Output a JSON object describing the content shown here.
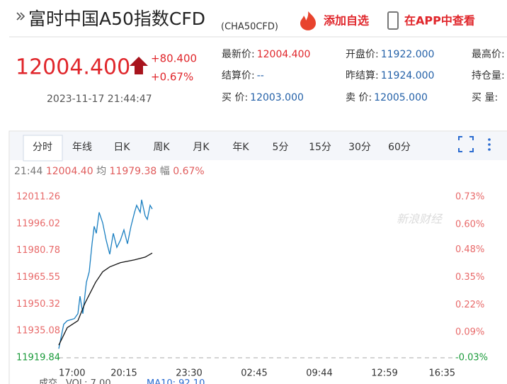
{
  "header": {
    "title": "富时中国A50指数CFD",
    "code": "(CHA50CFD)",
    "add_watchlist": "添加自选",
    "view_in_app": "在APP中查看"
  },
  "quote": {
    "price": "12004.400",
    "change": "+80.400",
    "change_pct": "+0.67%",
    "time": "2023-11-17 21:44:47",
    "fields": [
      {
        "label": "最新价:",
        "value": "12004.400"
      },
      {
        "label": "开盘价:",
        "value": "11922.000"
      },
      {
        "label": "最高价:"
      },
      {
        "label": "结算价:",
        "value": "--"
      },
      {
        "label": "昨结算:",
        "value": "11924.000"
      },
      {
        "label": "持仓量:"
      },
      {
        "label": "买 价:",
        "value": "12003.000"
      },
      {
        "label": "卖 价:",
        "value": "12005.000"
      },
      {
        "label": "买 量:"
      }
    ]
  },
  "tabs": [
    "分时",
    "年线",
    "日K",
    "周K",
    "月K",
    "年K",
    "5分",
    "15分",
    "30分",
    "60分"
  ],
  "chart_data": {
    "type": "line",
    "info": [
      "21:44",
      "12004.40",
      "均",
      "11979.38",
      "幅",
      "0.67%"
    ],
    "watermark": "新浪财经",
    "xlim": [
      0,
      6
    ],
    "xticks": [
      {
        "value": 0,
        "label": "17:00"
      },
      {
        "value": 1,
        "label": "20:15"
      },
      {
        "value": 2,
        "label": "23:30"
      },
      {
        "value": 3,
        "label": "02:45"
      },
      {
        "value": 4,
        "label": "09:44"
      },
      {
        "value": 5,
        "label": "12:59"
      },
      {
        "value": 6,
        "label": "16:35"
      }
    ],
    "ylim": [
      11919.84,
      12011.26
    ],
    "yticks": [
      11919.84,
      11935.08,
      11950.32,
      11965.55,
      11980.78,
      11996.02,
      12011.26
    ],
    "y2lim": [
      -0.03,
      0.73
    ],
    "y2ticks": [
      {
        "value": -0.03,
        "label": "-0.03%"
      },
      {
        "value": 0.09,
        "label": "0.09%"
      },
      {
        "value": 0.22,
        "label": "0.22%"
      },
      {
        "value": 0.35,
        "label": "0.35%"
      },
      {
        "value": 0.48,
        "label": "0.48%"
      },
      {
        "value": 0.6,
        "label": "0.60%"
      },
      {
        "value": 0.73,
        "label": "0.73%"
      }
    ],
    "series": [
      {
        "name": "价格",
        "color": "#1a7fc1",
        "x": [
          0,
          0.033,
          0.076,
          0.13,
          0.239,
          0.293,
          0.326,
          0.37,
          0.424,
          0.467,
          0.511,
          0.543,
          0.576,
          0.62,
          0.674,
          0.728,
          0.783,
          0.837,
          0.891,
          0.946,
          1,
          1.054,
          1.109,
          1.163,
          1.196,
          1.25,
          1.272,
          1.326,
          1.359,
          1.402,
          1.435
        ],
        "values": [
          11925.01,
          11930.97,
          11938.92,
          11940.91,
          11942.1,
          11944.88,
          11954.82,
          11944.88,
          11962.77,
          11968.73,
          11984.63,
          11994.57,
          11990.59,
          12002.52,
          11996.55,
          11986.62,
          11978.67,
          11990.59,
          11982.64,
          11986.62,
          11992.58,
          11984.63,
          11994.57,
          12002.52,
          12006.49,
          12002.52,
          12009.67,
          12000.53,
          11998.54,
          12006.49,
          12004.4
        ]
      },
      {
        "name": "均价",
        "color": "#111111",
        "x": [
          0,
          0.13,
          0.293,
          0.402,
          0.565,
          0.674,
          0.783,
          0.946,
          1.163,
          1.326,
          1.435
        ],
        "values": [
          11927.0,
          11936.94,
          11940.91,
          11950.85,
          11962.77,
          11968.73,
          11971.51,
          11973.9,
          11975.49,
          11977.08,
          11979.38
        ]
      }
    ],
    "volume_labels": [
      "成交",
      "VOL: 7.00",
      "MA10: 92.10"
    ]
  }
}
